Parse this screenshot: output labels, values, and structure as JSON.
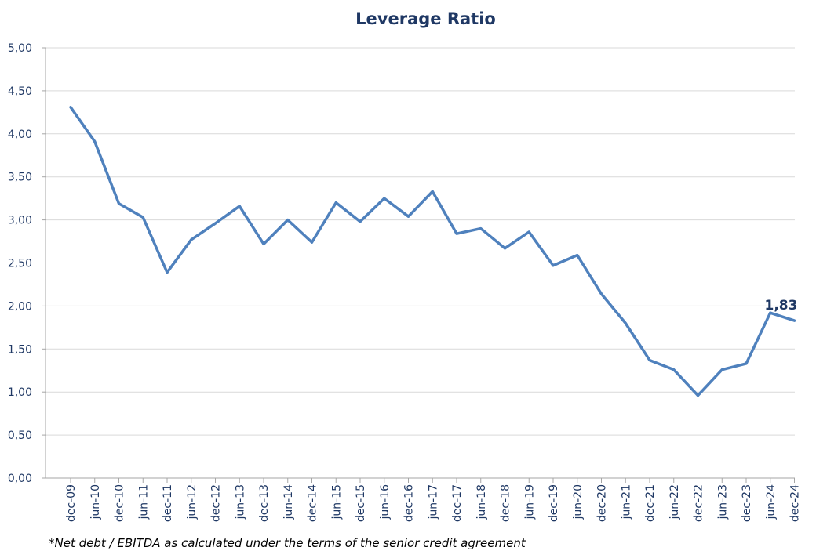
{
  "chart_data": {
    "type": "line",
    "title": "Leverage Ratio",
    "footnote": "*Net debt / EBITDA as calculated under the terms of the senior credit agreement",
    "xlabel": "",
    "ylabel": "",
    "ylim": [
      0,
      5
    ],
    "y_ticks": [
      "0,00",
      "0,50",
      "1,00",
      "1,50",
      "2,00",
      "2,50",
      "3,00",
      "3,50",
      "4,00",
      "4,50",
      "5,00"
    ],
    "categories": [
      "dec-09",
      "jun-10",
      "dec-10",
      "jun-11",
      "dec-11",
      "jun-12",
      "dec-12",
      "jun-13",
      "dec-13",
      "jun-14",
      "dec-14",
      "jun-15",
      "dec-15",
      "jun-16",
      "dec-16",
      "jun-17",
      "dec-17",
      "jun-18",
      "dec-18",
      "jun-19",
      "dec-19",
      "jun-20",
      "dec-20",
      "jun-21",
      "dec-21",
      "jun-22",
      "dec-22",
      "jun-23",
      "dec-23",
      "jun-24",
      "dec-24"
    ],
    "series": [
      {
        "values": [
          4.31,
          3.91,
          3.19,
          3.03,
          2.39,
          2.77,
          2.96,
          3.16,
          2.72,
          3.0,
          2.74,
          3.2,
          2.98,
          3.25,
          3.04,
          3.33,
          2.84,
          2.9,
          2.67,
          2.86,
          2.47,
          2.59,
          2.14,
          1.8,
          1.37,
          1.26,
          0.96,
          1.26,
          1.33,
          1.92,
          1.83
        ],
        "color": "#4F81BD"
      }
    ],
    "data_label": {
      "text": "1,83",
      "index": 30,
      "color": "#1F3864"
    },
    "grid": true,
    "legend": "none"
  }
}
